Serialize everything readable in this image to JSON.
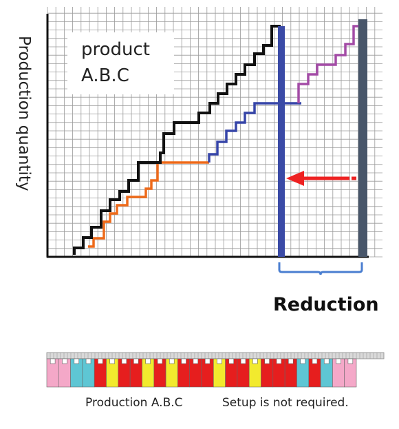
{
  "axis_label": "Production quantity",
  "product_box": {
    "line1": "product",
    "line2": "A.B.C"
  },
  "reduction_label": "Reduction",
  "captions": {
    "left": "Production A.B.C",
    "right": "Setup is not required."
  },
  "colors": {
    "black_line": "#111111",
    "orange_line": "#ee6a1a",
    "blue_line": "#3645a8",
    "purple_line": "#a34ba6",
    "blue_bar": "#3a4aa6",
    "gray_bar": "#48566a",
    "arrow": "#ee2222",
    "brace": "#4a7ed0",
    "pink": "#f4a8c8",
    "cyan": "#5ec6d4",
    "red": "#e61e1e",
    "yellow": "#f2ea2e",
    "grid": "#9a9a9a"
  },
  "setup_sequence": [
    "pink",
    "pink",
    "cyan",
    "cyan",
    "red",
    "yellow",
    "red",
    "red",
    "yellow",
    "red",
    "yellow",
    "red",
    "red",
    "red",
    "yellow",
    "red",
    "red",
    "yellow",
    "red",
    "red",
    "red",
    "cyan",
    "red",
    "cyan",
    "pink",
    "pink"
  ]
}
